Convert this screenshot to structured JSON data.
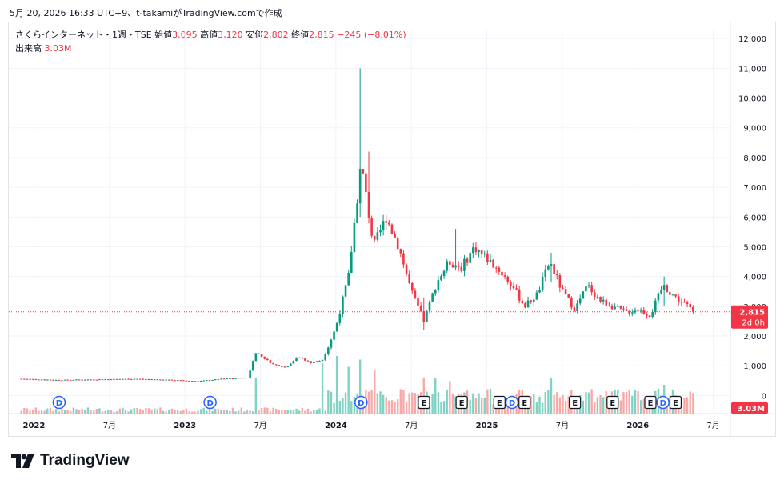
{
  "caption": "5月 20, 2026 16:33 UTC+9、t-takamiがTradingView.comで作成",
  "legend": {
    "symbol": "さくらインターネット・1週・TSE",
    "open_label": "始値",
    "open": "3,095",
    "high_label": "高値",
    "high": "3,120",
    "low_label": "安値",
    "low": "2,802",
    "close_label": "終値",
    "close": "2,815",
    "change": "−245 (−8.01%)",
    "volume_label": "出来高",
    "volume": "3.03M"
  },
  "price_badge": {
    "price": "2,815",
    "countdown": "2d 0h"
  },
  "volume_badge": "3.03M",
  "event_markers": [
    {
      "label": "D",
      "kind": "dividend",
      "date": "2022-03"
    },
    {
      "label": "D",
      "kind": "dividend",
      "date": "2023-03"
    },
    {
      "label": "D",
      "kind": "dividend",
      "date": "2024-03"
    },
    {
      "label": "E",
      "kind": "earnings",
      "date": "2024-08"
    },
    {
      "label": "E",
      "kind": "earnings",
      "date": "2024-11"
    },
    {
      "label": "E",
      "kind": "earnings",
      "date": "2025-02"
    },
    {
      "label": "D",
      "kind": "dividend",
      "date": "2025-03"
    },
    {
      "label": "E",
      "kind": "earnings",
      "date": "2025-04"
    },
    {
      "label": "E",
      "kind": "earnings",
      "date": "2025-08"
    },
    {
      "label": "E",
      "kind": "earnings",
      "date": "2025-11"
    },
    {
      "label": "E",
      "kind": "earnings",
      "date": "2026-02"
    },
    {
      "label": "D",
      "kind": "dividend",
      "date": "2026-03"
    },
    {
      "label": "E",
      "kind": "earnings",
      "date": "2026-04"
    }
  ],
  "brand": "TradingView",
  "colors": {
    "up": "#089981",
    "down": "#f23645",
    "up_volume": "#7fd2c4",
    "down_volume": "#f7a9a7",
    "dividend": "#2962ff",
    "earnings": "#131722",
    "grid": "#f0f3fa"
  },
  "chart_data": {
    "type": "candlestick",
    "interval": "1 week",
    "y_axis": {
      "ticks": [
        "0",
        "1,000",
        "2,000",
        "3,000",
        "4,000",
        "5,000",
        "6,000",
        "7,000",
        "8,000",
        "9,000",
        "10,000",
        "11,000",
        "12,000"
      ],
      "range": [
        -500,
        12300
      ]
    },
    "x_axis": {
      "ticks": [
        {
          "label": "2022",
          "date": "2022-01"
        },
        {
          "label": "7月",
          "date": "2022-07"
        },
        {
          "label": "2023",
          "date": "2023-01"
        },
        {
          "label": "7月",
          "date": "2023-07"
        },
        {
          "label": "2024",
          "date": "2024-01"
        },
        {
          "label": "7月",
          "date": "2024-07"
        },
        {
          "label": "2025",
          "date": "2025-01"
        },
        {
          "label": "7月",
          "date": "2025-07"
        },
        {
          "label": "2026",
          "date": "2026-01"
        },
        {
          "label": "7月",
          "date": "2026-07"
        }
      ]
    },
    "last_price": 2815,
    "price_path": [
      [
        "2021-12",
        560
      ],
      [
        "2022-03",
        520
      ],
      [
        "2022-06",
        540
      ],
      [
        "2022-09",
        560
      ],
      [
        "2022-12",
        520
      ],
      [
        "2023-02",
        480
      ],
      [
        "2023-04",
        560
      ],
      [
        "2023-06",
        600
      ],
      [
        "2023-06-20",
        1450
      ],
      [
        "2023-08",
        1050
      ],
      [
        "2023-09",
        950
      ],
      [
        "2023-10",
        1300
      ],
      [
        "2023-11",
        1100
      ],
      [
        "2023-12",
        1200
      ],
      [
        "2024-01",
        2300
      ],
      [
        "2024-02",
        4000
      ],
      [
        "2024-03",
        7800
      ],
      [
        "2024-04",
        5000
      ],
      [
        "2024-05",
        6000
      ],
      [
        "2024-06",
        5000
      ],
      [
        "2024-07",
        3500
      ],
      [
        "2024-08",
        2500
      ],
      [
        "2024-09",
        3800
      ],
      [
        "2024-10",
        4500
      ],
      [
        "2024-11",
        4300
      ],
      [
        "2024-12",
        5000
      ],
      [
        "2025-01",
        4600
      ],
      [
        "2025-02",
        4200
      ],
      [
        "2025-03",
        3700
      ],
      [
        "2025-04",
        3000
      ],
      [
        "2025-05",
        3400
      ],
      [
        "2025-06",
        4500
      ],
      [
        "2025-07",
        3500
      ],
      [
        "2025-08",
        2900
      ],
      [
        "2025-09",
        3700
      ],
      [
        "2025-10",
        3200
      ],
      [
        "2025-11",
        3000
      ],
      [
        "2025-12",
        2800
      ],
      [
        "2026-01",
        2900
      ],
      [
        "2026-02",
        2700
      ],
      [
        "2026-03",
        3700
      ],
      [
        "2026-04",
        3300
      ],
      [
        "2026-05-18",
        2815
      ]
    ],
    "spikes": [
      {
        "date": "2024-03",
        "high": 11000,
        "low": 6000
      },
      {
        "date": "2024-03-22",
        "high": 8200,
        "low": 6800
      },
      {
        "date": "2024-08",
        "high": 3300,
        "low": 2200
      },
      {
        "date": "2024-10-15",
        "high": 5600,
        "low": 4200
      },
      {
        "date": "2025-06",
        "high": 4800,
        "low": 3800
      },
      {
        "date": "2026-03",
        "high": 4000,
        "low": 3000
      }
    ],
    "volume_peaks": [
      {
        "date": "2023-06-20",
        "value": 1.0,
        "up": true
      },
      {
        "date": "2023-12",
        "value": 1.4,
        "up": true
      },
      {
        "date": "2024-01",
        "value": 1.6,
        "up": true
      },
      {
        "date": "2024-02",
        "value": 1.3,
        "up": true
      },
      {
        "date": "2024-03",
        "value": 1.5,
        "up": true
      },
      {
        "date": "2024-04",
        "value": 1.2,
        "up": false
      },
      {
        "date": "2024-08",
        "value": 1.0,
        "up": true
      },
      {
        "date": "2024-09",
        "value": 1.0,
        "up": true
      },
      {
        "date": "2024-10",
        "value": 0.9,
        "up": true
      },
      {
        "date": "2025-06",
        "value": 1.0,
        "up": false
      },
      {
        "date": "2026-03",
        "value": 0.8,
        "up": false
      }
    ]
  }
}
